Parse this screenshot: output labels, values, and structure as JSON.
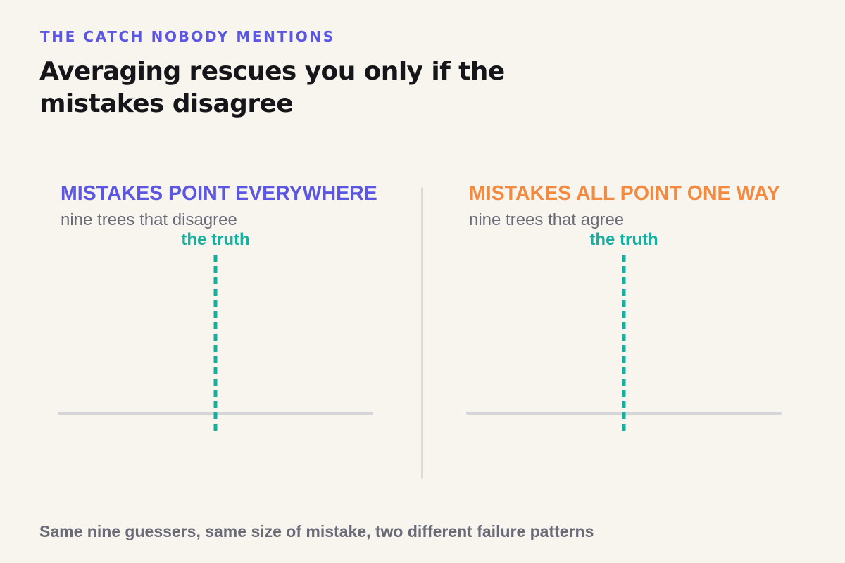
{
  "eyebrow": "THE CATCH NOBODY MENTIONS",
  "headline": "Averaging rescues you only if the mistakes disagree",
  "panels": [
    {
      "title": "MISTAKES POINT EVERYWHERE",
      "subtitle": "nine trees that disagree",
      "truth_label": "the truth",
      "title_color": "#5b57e3"
    },
    {
      "title": "MISTAKES ALL POINT ONE WAY",
      "subtitle": "nine trees that agree",
      "truth_label": "the truth",
      "title_color": "#f48a40"
    }
  ],
  "footnote": "Same nine guessers, same size of mistake, two different failure patterns",
  "colors": {
    "background": "#f7f5ee",
    "accent_purple": "#5b57e3",
    "accent_orange": "#f48a40",
    "truth_teal": "#17b0a0",
    "axis_gray": "#d6d6d8",
    "muted_text": "#6b6b78"
  }
}
